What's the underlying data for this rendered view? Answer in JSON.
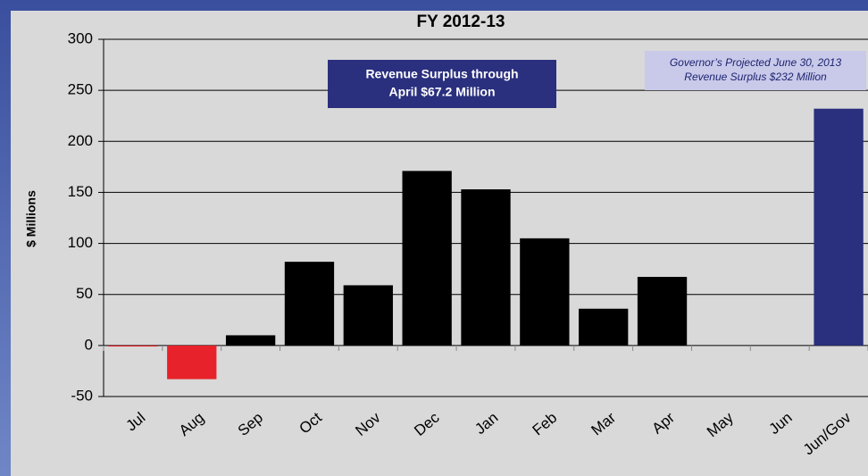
{
  "chart_data": {
    "type": "bar",
    "title": "FY 2012-13",
    "y_label": "$ Millions",
    "categories": [
      "Jul",
      "Aug",
      "Sep",
      "Oct",
      "Nov",
      "Dec",
      "Jan",
      "Feb",
      "Mar",
      "Apr",
      "May",
      "Jun",
      "Jun/Gov"
    ],
    "values": [
      -1,
      -33,
      10,
      82,
      59,
      171,
      153,
      105,
      36,
      67.2,
      null,
      null,
      232
    ],
    "colors": [
      "#e8222a",
      "#e8222a",
      "#000000",
      "#000000",
      "#000000",
      "#000000",
      "#000000",
      "#000000",
      "#000000",
      "#000000",
      "#000000",
      "#000000",
      "#2a2f7e"
    ],
    "ylim": [
      -50,
      300
    ],
    "yticks": [
      -50,
      0,
      50,
      100,
      150,
      200,
      250,
      300
    ],
    "grid": true,
    "annotations": [
      {
        "lines": [
          "Revenue Surplus through",
          "April $67.2 Million"
        ]
      },
      {
        "lines": [
          "Governor’s Projected June 30, 2013",
          "Revenue Surplus $232 Million"
        ]
      }
    ]
  }
}
